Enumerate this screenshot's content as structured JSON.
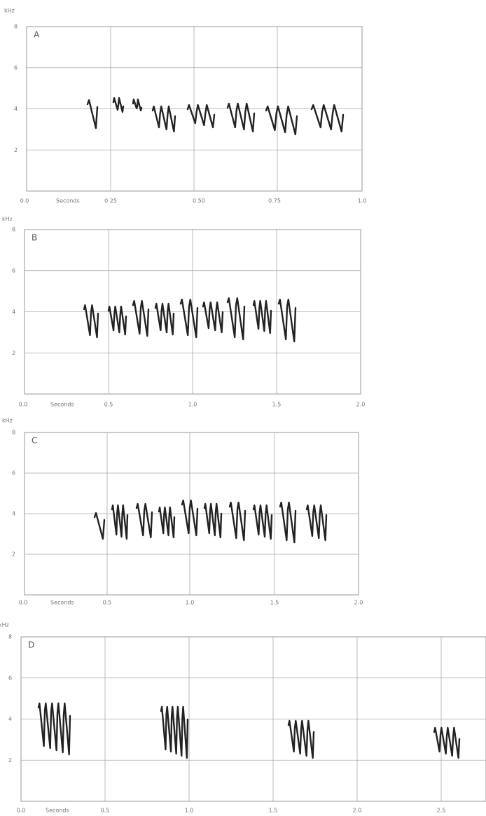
{
  "panels": [
    {
      "label": "A",
      "unit": "kHz",
      "x_title": "Seconds",
      "y_ticks": [
        "8",
        "6",
        "4",
        "2"
      ],
      "x_ticks": [
        "0.0",
        "0.25",
        "0.50",
        "0.75",
        "1.0"
      ]
    },
    {
      "label": "B",
      "unit": "kHz",
      "x_title": "Seconds",
      "y_ticks": [
        "8",
        "6",
        "4",
        "2"
      ],
      "x_ticks": [
        "0.0",
        "0.5",
        "1.0",
        "1.5",
        "2.0"
      ]
    },
    {
      "label": "C",
      "unit": "kHz",
      "x_title": "Seconds",
      "y_ticks": [
        "8",
        "6",
        "4",
        "2"
      ],
      "x_ticks": [
        "0.0",
        "0.5",
        "1.0",
        "1.5",
        "2.0"
      ]
    },
    {
      "label": "D",
      "unit": "kHz",
      "x_title": "Seconds",
      "y_ticks": [
        "8",
        "6",
        "4",
        "2"
      ],
      "x_ticks": [
        "0.0",
        "0.5",
        "1.0",
        "1.5",
        "2.0",
        "2.5"
      ]
    }
  ]
}
